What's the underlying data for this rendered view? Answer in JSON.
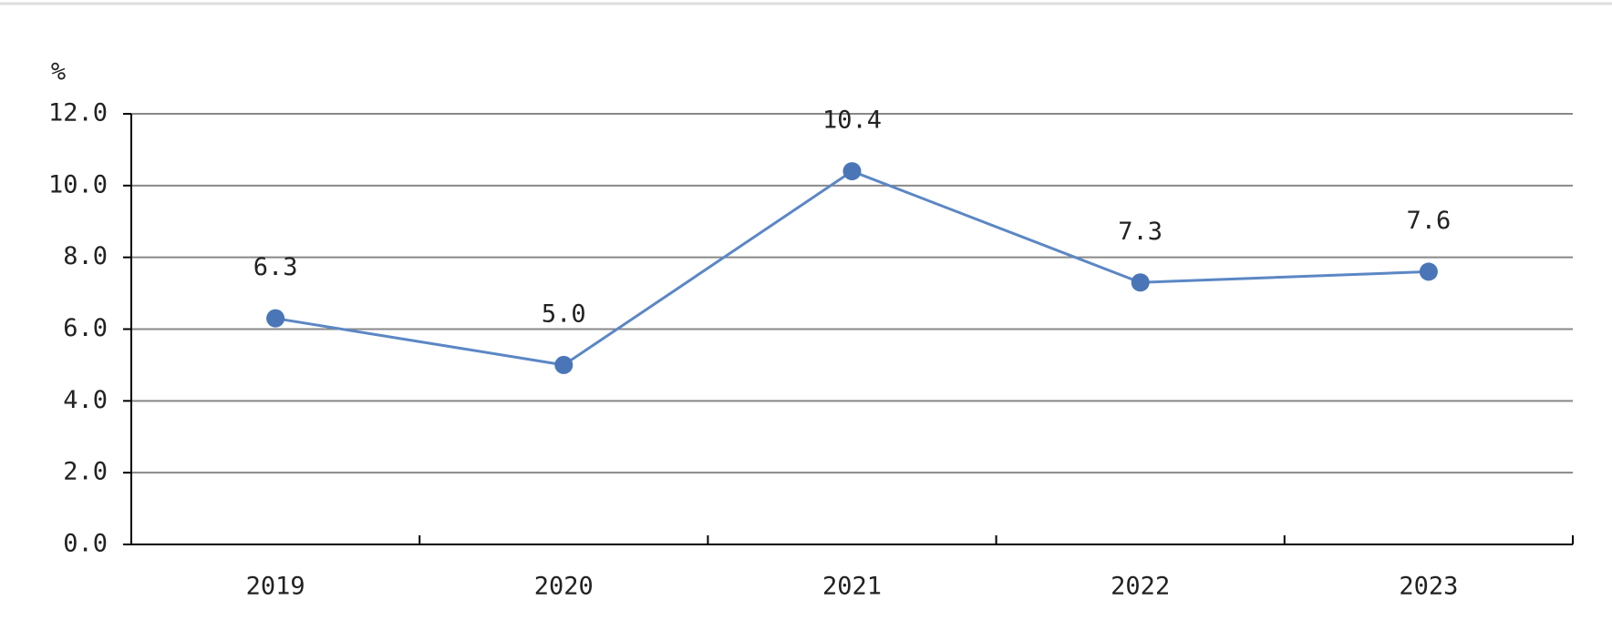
{
  "chart_data": {
    "type": "line",
    "y_label": "%",
    "categories": [
      "2019",
      "2020",
      "2021",
      "2022",
      "2023"
    ],
    "values": [
      6.3,
      5.0,
      10.4,
      7.3,
      7.6
    ],
    "value_labels": [
      "6.3",
      "5.0",
      "10.4",
      "7.3",
      "7.6"
    ],
    "color": "#5b87c5",
    "ylim": [
      0,
      12
    ],
    "yticks": [
      {
        "value": 0,
        "label": "0.0"
      },
      {
        "value": 2,
        "label": "2.0"
      },
      {
        "value": 4,
        "label": "4.0"
      },
      {
        "value": 6,
        "label": "6.0"
      },
      {
        "value": 8,
        "label": "8.0"
      },
      {
        "value": 10,
        "label": "10.0"
      },
      {
        "value": 12,
        "label": "12.0"
      }
    ],
    "grid": true
  }
}
